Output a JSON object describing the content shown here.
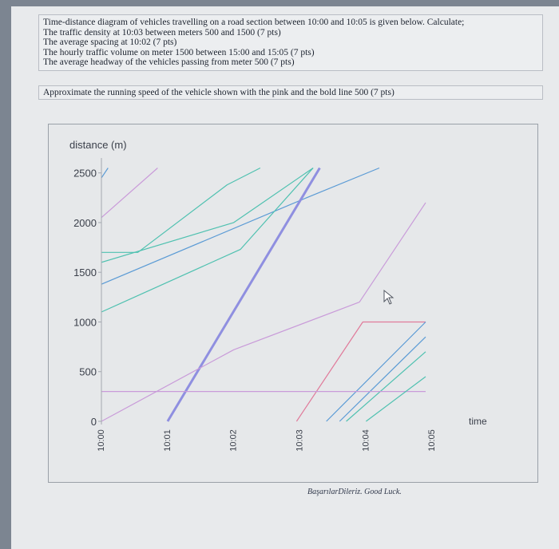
{
  "questions": [
    "Time-distance diagram of vehicles travelling on a road section between 10:00 and 10:05 is given below. Calculate;",
    "The traffic density at 10:03 between meters 500 and 1500 (7 pts)",
    "The average spacing at 10:02 (7 pts)",
    "The hourly traffic volume on meter 1500 between 15:00 and 15:05 (7 pts)",
    "The average headway of the vehicles passing from meter 500 (7 pts)"
  ],
  "approx_question": "Approximate the running speed of the vehicle shown with the pink and the bold line 500 (7 pts)",
  "footer": "BaşarılarDileriz. Good Luck.",
  "chart_data": {
    "type": "line",
    "ylabel": "distance (m)",
    "xlabel": "time",
    "yticks": [
      0,
      500,
      1000,
      1500,
      2000,
      2500
    ],
    "ytick_labels": [
      "0",
      "500",
      "1000",
      "1500",
      "2000",
      "2500"
    ],
    "xticks": [
      0,
      1,
      2,
      3,
      4,
      5
    ],
    "xtick_labels": [
      "10:00",
      "10:01",
      "10:02",
      "10:03",
      "10:04",
      "10:05"
    ],
    "xlim": [
      0,
      5.6
    ],
    "ylim": [
      0,
      2650
    ],
    "grid": false,
    "series": [
      {
        "color": "#5b9bd5",
        "width": 1.2,
        "points": [
          [
            0,
            2450
          ],
          [
            0.1,
            2550
          ]
        ]
      },
      {
        "color": "#c99bd9",
        "width": 1.2,
        "points": [
          [
            0,
            2050
          ],
          [
            0.85,
            2550
          ]
        ]
      },
      {
        "color": "#4fc1b0",
        "width": 1.2,
        "points": [
          [
            0,
            1700
          ],
          [
            0.55,
            1700
          ],
          [
            1.9,
            2380
          ],
          [
            2.4,
            2550
          ]
        ]
      },
      {
        "color": "#5b9bd5",
        "width": 1.2,
        "points": [
          [
            0,
            1380
          ],
          [
            3.1,
            2250
          ],
          [
            4.2,
            2550
          ]
        ]
      },
      {
        "color": "#4fc1b0",
        "width": 1.2,
        "points": [
          [
            0,
            1100
          ],
          [
            2.1,
            1730
          ],
          [
            3.2,
            2550
          ]
        ]
      },
      {
        "color": "#4fc1b0",
        "width": 1.2,
        "points": [
          [
            0,
            1600
          ],
          [
            2.0,
            2000
          ],
          [
            3.2,
            2550
          ]
        ]
      },
      {
        "color": "#8f8fe0",
        "width": 3.0,
        "points": [
          [
            1.0,
            0
          ],
          [
            3.3,
            2550
          ]
        ]
      },
      {
        "color": "#c99bd9",
        "width": 1.2,
        "points": [
          [
            0,
            0
          ],
          [
            2.0,
            720
          ],
          [
            3.9,
            1200
          ],
          [
            4.9,
            2200
          ]
        ]
      },
      {
        "color": "#e07a9a",
        "width": 1.2,
        "points": [
          [
            2.95,
            0
          ],
          [
            3.95,
            1000
          ],
          [
            4.9,
            1000
          ]
        ]
      },
      {
        "color": "#5b9bd5",
        "width": 1.2,
        "points": [
          [
            3.4,
            0
          ],
          [
            4.9,
            1000
          ]
        ]
      },
      {
        "color": "#5b9bd5",
        "width": 1.2,
        "points": [
          [
            3.6,
            0
          ],
          [
            4.9,
            850
          ]
        ]
      },
      {
        "color": "#4fc1b0",
        "width": 1.2,
        "points": [
          [
            3.7,
            0
          ],
          [
            4.9,
            700
          ]
        ]
      },
      {
        "color": "#c99bd9",
        "width": 1.2,
        "points": [
          [
            0,
            300
          ],
          [
            3.0,
            300
          ],
          [
            4.9,
            300
          ]
        ]
      },
      {
        "color": "#4fc1b0",
        "width": 1.2,
        "points": [
          [
            4.0,
            0
          ],
          [
            4.9,
            450
          ]
        ]
      }
    ]
  }
}
